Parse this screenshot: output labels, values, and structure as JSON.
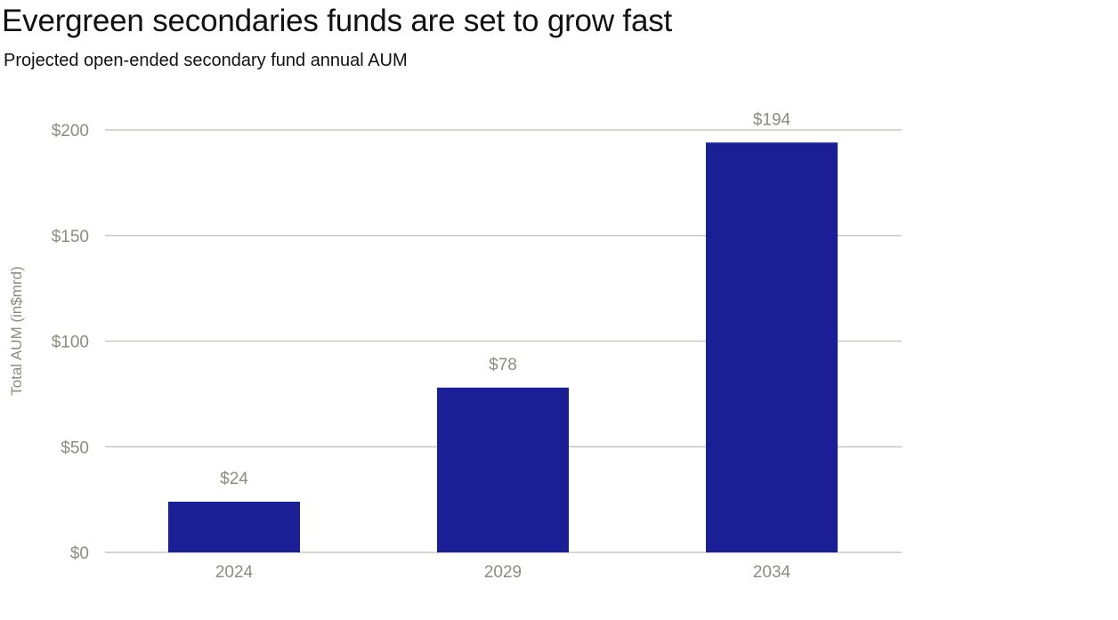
{
  "title": "Evergreen secondaries funds are set to grow fast",
  "subtitle": "Projected open-ended secondary fund annual AUM",
  "chart_data": {
    "type": "bar",
    "title": "Evergreen secondaries funds are set to grow fast",
    "subtitle": "Projected open-ended secondary fund annual AUM",
    "xlabel": "",
    "ylabel": "Total AUM (in$mrd)",
    "categories": [
      "2024",
      "2029",
      "2034"
    ],
    "values": [
      24,
      78,
      194
    ],
    "value_labels": [
      "$24",
      "$78",
      "$194"
    ],
    "ylim": [
      0,
      200
    ],
    "yticks": [
      0,
      50,
      100,
      150,
      200
    ],
    "ytick_labels": [
      "$0",
      "$50",
      "$100",
      "$150",
      "$200"
    ],
    "grid": true,
    "bar_color": "#1a1f96",
    "grid_color": "#c9c7c0",
    "label_color": "#8e8b80"
  }
}
